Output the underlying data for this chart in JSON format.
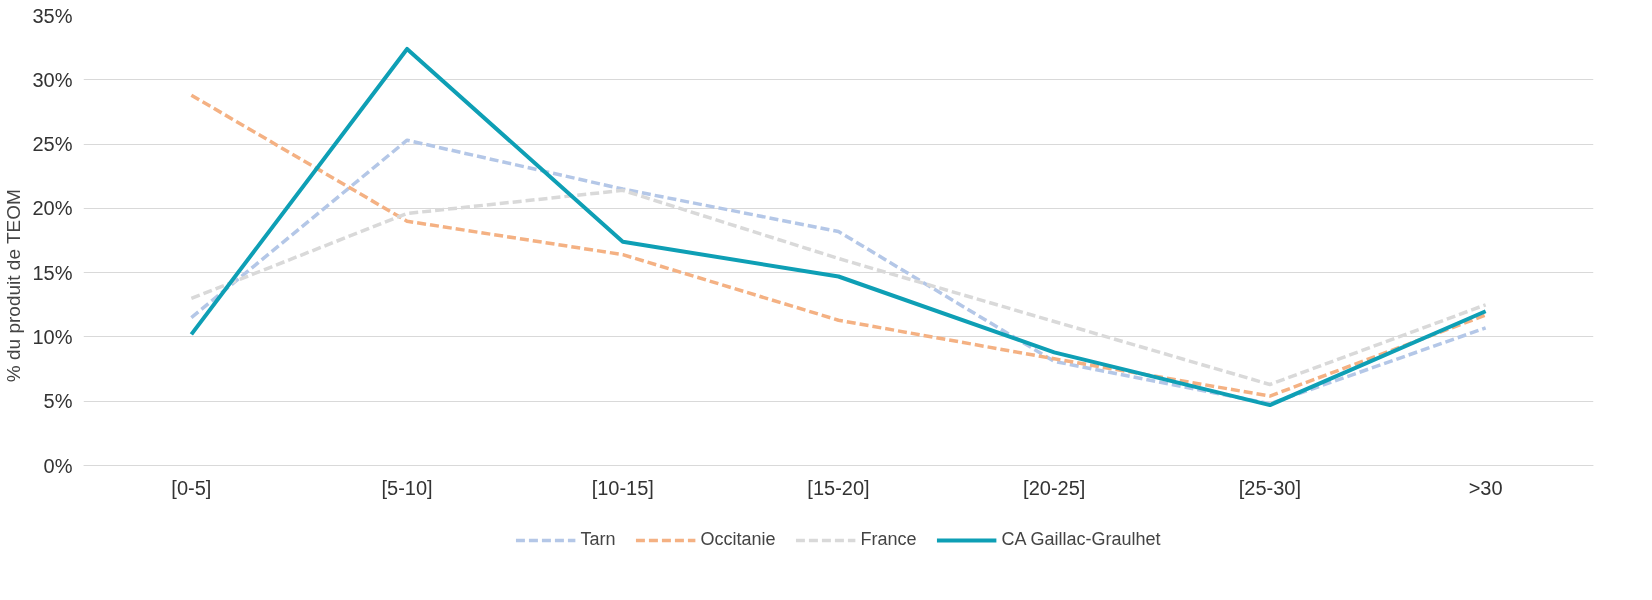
{
  "chart_data": {
    "type": "line",
    "ylabel": "% du produit de TEOM",
    "categories": [
      "[0-5]",
      "[5-10]",
      "[10-15]",
      "[15-20]",
      "[20-25]",
      "[25-30]",
      ">30"
    ],
    "series": [
      {
        "name": "Tarn",
        "color": "#b4c7e7",
        "line_style": "dashed",
        "values": [
          11.5,
          25.3,
          21.5,
          18.2,
          8.1,
          4.8,
          10.7
        ]
      },
      {
        "name": "Occitanie",
        "color": "#f4b183",
        "line_style": "dashed",
        "values": [
          28.8,
          19.0,
          16.4,
          11.3,
          8.3,
          5.4,
          11.7
        ]
      },
      {
        "name": "France",
        "color": "#d9d9d9",
        "line_style": "dashed",
        "values": [
          13.0,
          19.6,
          21.4,
          16.1,
          11.2,
          6.3,
          12.5
        ]
      },
      {
        "name": "CA Gaillac-Graulhet",
        "color": "#0e9fb5",
        "line_style": "solid",
        "values": [
          10.2,
          32.4,
          17.4,
          14.7,
          8.8,
          4.7,
          12.0
        ]
      }
    ],
    "ylim": [
      0,
      35
    ],
    "yticks": [
      {
        "value": 0,
        "label": "0%"
      },
      {
        "value": 5,
        "label": "5%"
      },
      {
        "value": 10,
        "label": "10%"
      },
      {
        "value": 15,
        "label": "15%"
      },
      {
        "value": 20,
        "label": "20%"
      },
      {
        "value": 25,
        "label": "25%"
      },
      {
        "value": 30,
        "label": "30%"
      },
      {
        "value": 35,
        "label": "35%"
      }
    ],
    "grid": "y",
    "legend": "bottom",
    "marker": "none"
  }
}
